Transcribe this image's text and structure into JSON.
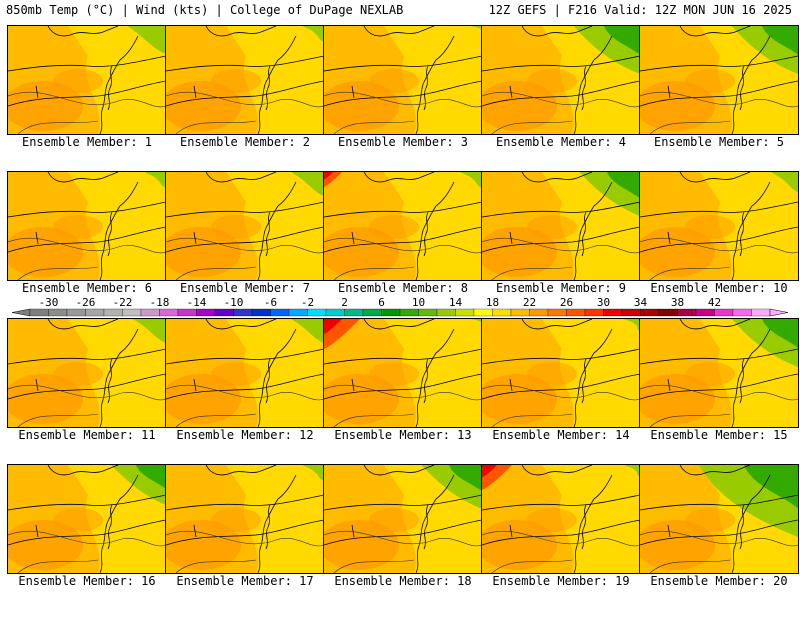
{
  "header": {
    "left": "850mb Temp (°C) | Wind (kts) | College of DuPage NEXLAB",
    "right": "12Z GEFS | F216 Valid: 12Z MON JUN 16 2025"
  },
  "colorbar": {
    "ticks": [
      "-30",
      "-26",
      "-22",
      "-18",
      "-14",
      "-10",
      "-6",
      "-2",
      "2",
      "6",
      "10",
      "14",
      "18",
      "22",
      "26",
      "30",
      "34",
      "38",
      "42"
    ],
    "colors": [
      "#7f7f7f",
      "#8c8c8c",
      "#999999",
      "#a6a6a6",
      "#b2b2b2",
      "#bfbfbf",
      "#cc99cc",
      "#dd66dd",
      "#cc33cc",
      "#aa00cc",
      "#6600cc",
      "#3333cc",
      "#0033cc",
      "#0066ff",
      "#00aaff",
      "#00ddff",
      "#00cccc",
      "#00bb88",
      "#00aa44",
      "#009900",
      "#33aa00",
      "#66bb00",
      "#99cc00",
      "#ccdd00",
      "#ffff00",
      "#ffdd00",
      "#ffbb00",
      "#ff9900",
      "#ff7700",
      "#ff5500",
      "#ff3300",
      "#ee0000",
      "#cc0000",
      "#aa0000",
      "#880000",
      "#aa0044",
      "#cc0088",
      "#ee33cc",
      "#ff66ee",
      "#ffaaff"
    ]
  },
  "members": [
    {
      "label": "Ensemble Member: 1",
      "green": 0.35,
      "red": 0.0
    },
    {
      "label": "Ensemble Member: 2",
      "green": 0.2,
      "red": 0.0
    },
    {
      "label": "Ensemble Member: 3",
      "green": 0.1,
      "red": 0.0
    },
    {
      "label": "Ensemble Member: 4",
      "green": 0.6,
      "red": 0.0
    },
    {
      "label": "Ensemble Member: 5",
      "green": 0.6,
      "red": 0.0
    },
    {
      "label": "Ensemble Member: 6",
      "green": 0.2,
      "red": 0.0
    },
    {
      "label": "Ensemble Member: 7",
      "green": 0.3,
      "red": 0.0
    },
    {
      "label": "Ensemble Member: 8",
      "green": 0.2,
      "red": 0.3
    },
    {
      "label": "Ensemble Member: 9",
      "green": 0.55,
      "red": 0.0
    },
    {
      "label": "Ensemble Member: 10",
      "green": 0.25,
      "red": 0.0
    },
    {
      "label": "Ensemble Member: 11",
      "green": 0.3,
      "red": 0.0
    },
    {
      "label": "Ensemble Member: 12",
      "green": 0.3,
      "red": 0.0
    },
    {
      "label": "Ensemble Member: 13",
      "green": 0.1,
      "red": 0.6
    },
    {
      "label": "Ensemble Member: 14",
      "green": 0.15,
      "red": 0.0
    },
    {
      "label": "Ensemble Member: 15",
      "green": 0.6,
      "red": 0.0
    },
    {
      "label": "Ensemble Member: 16",
      "green": 0.5,
      "red": 0.0
    },
    {
      "label": "Ensemble Member: 17",
      "green": 0.2,
      "red": 0.0
    },
    {
      "label": "Ensemble Member: 18",
      "green": 0.55,
      "red": 0.0
    },
    {
      "label": "Ensemble Member: 19",
      "green": 0.15,
      "red": 0.5
    },
    {
      "label": "Ensemble Member: 20",
      "green": 0.9,
      "red": 0.0
    }
  ]
}
